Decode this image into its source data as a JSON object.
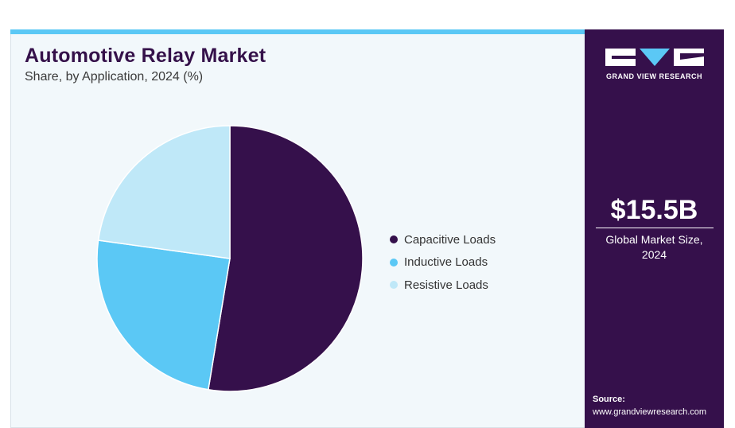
{
  "header": {
    "title": "Automotive Relay Market",
    "subtitle": "Share, by Application, 2024 (%)"
  },
  "chart_data": {
    "type": "pie",
    "categories": [
      "Capacitive Loads",
      "Inductive Loads",
      "Resistive Loads"
    ],
    "values": [
      52.6,
      24.6,
      22.8
    ],
    "colors": [
      "#35104b",
      "#5bc8f5",
      "#bfe8f8"
    ],
    "legend_position": "right"
  },
  "sidebar": {
    "brand": "GRAND VIEW RESEARCH",
    "market_size": "$15.5B",
    "market_label_line1": "Global Market Size,",
    "market_label_line2": "2024",
    "source_label": "Source:",
    "source_url": "www.grandviewresearch.com",
    "logo_icon": "gvr-logo-icon"
  }
}
